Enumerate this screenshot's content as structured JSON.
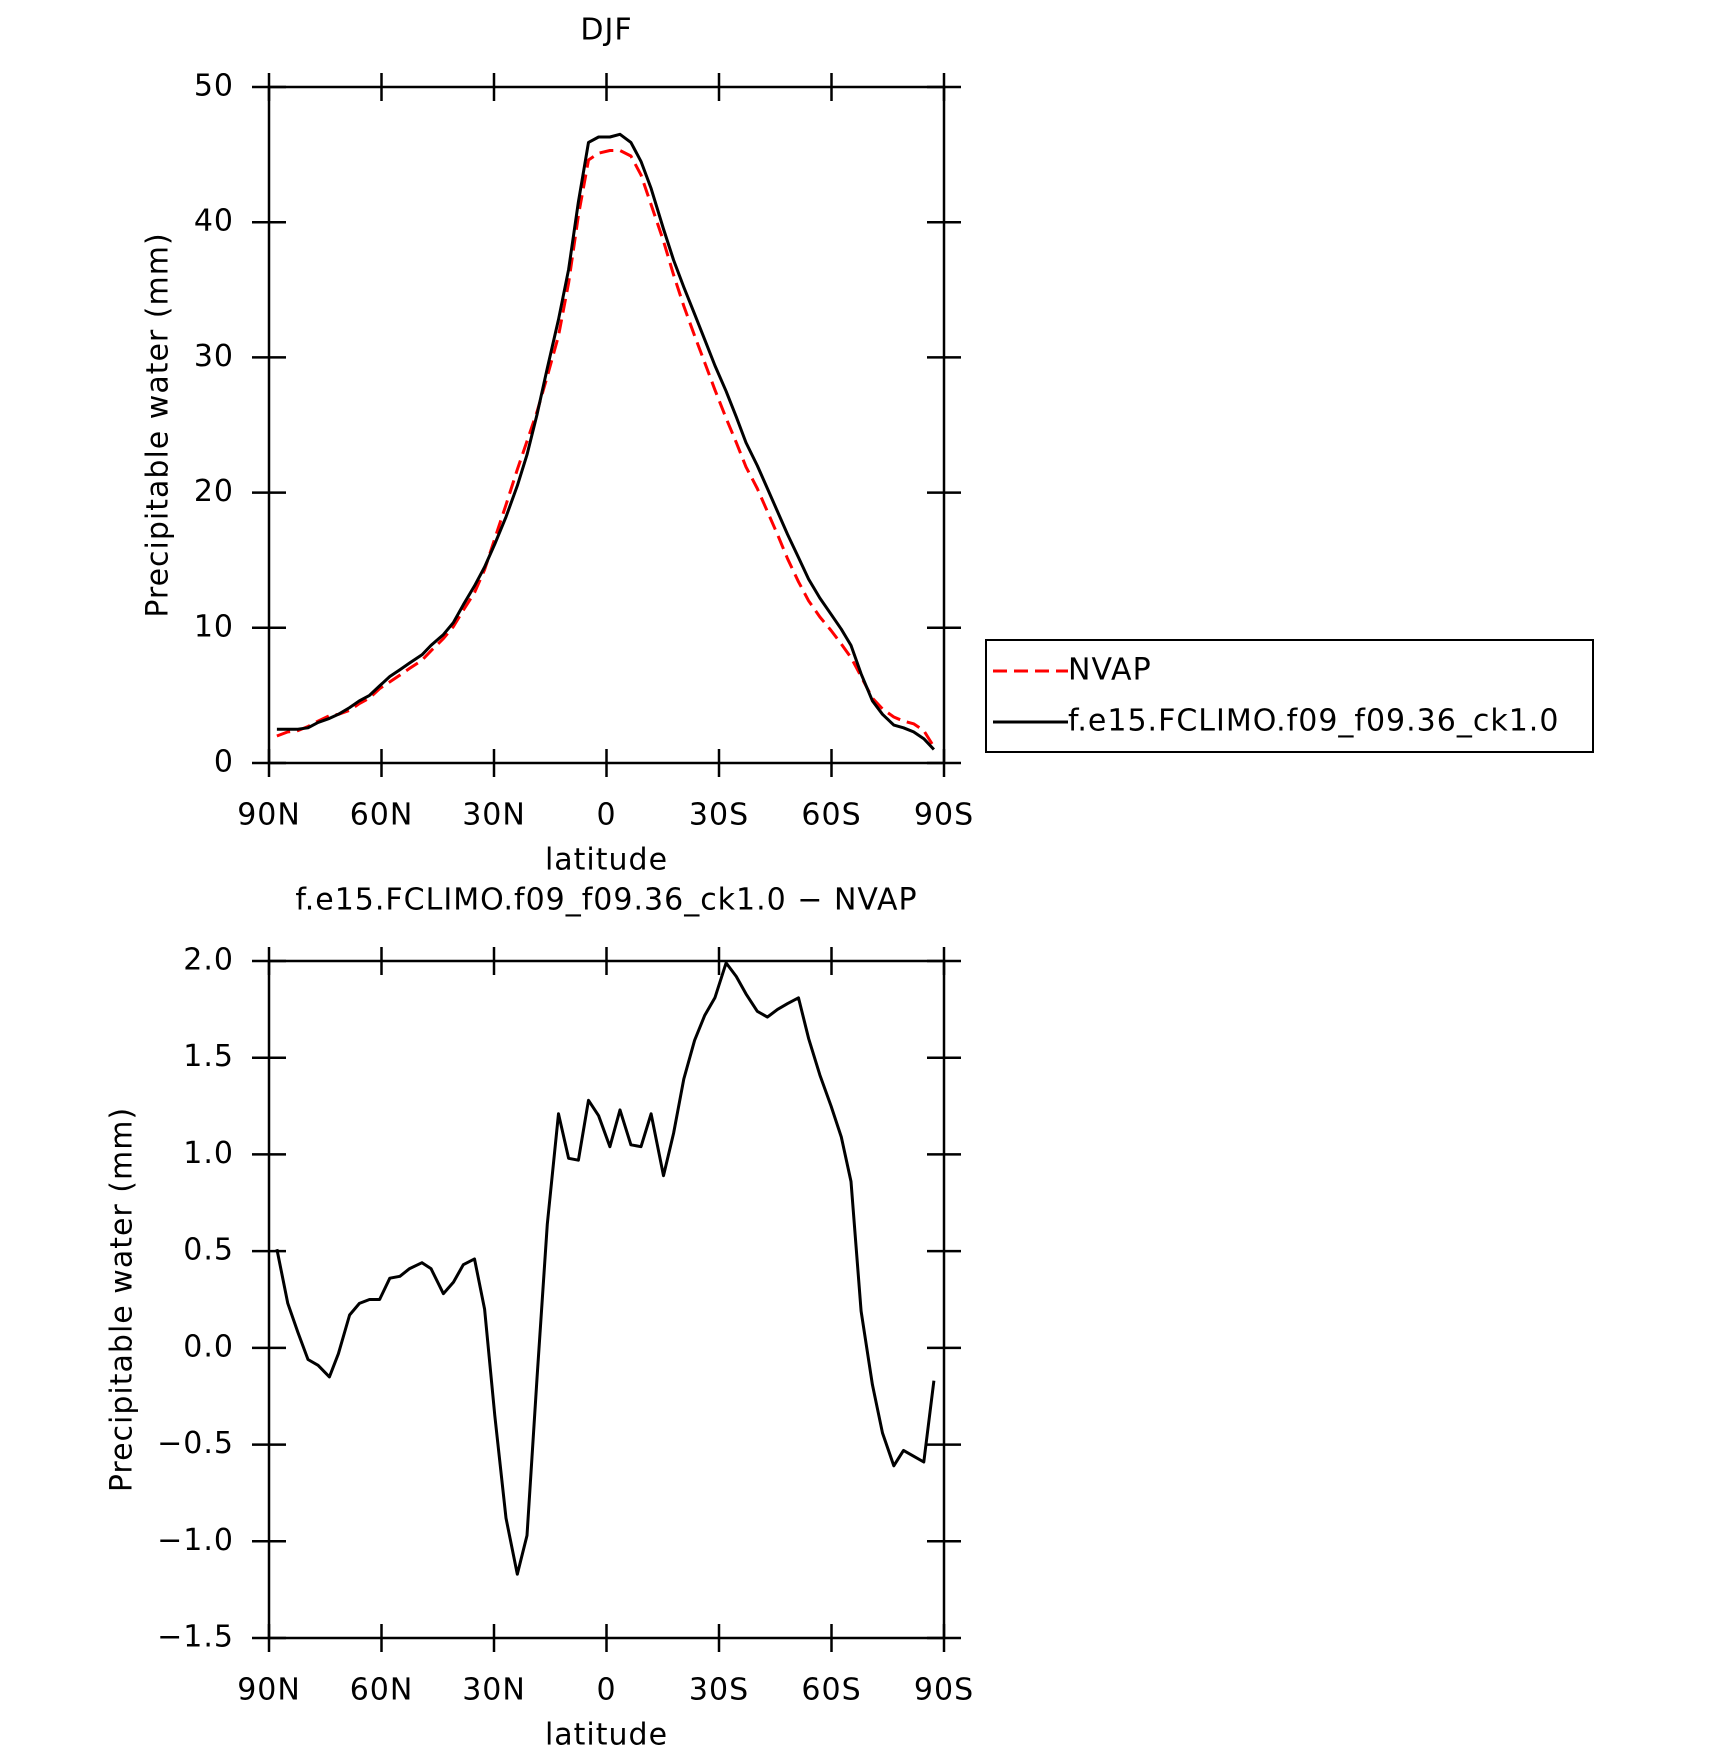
{
  "chart_data": [
    {
      "type": "line",
      "title": "DJF",
      "xlabel": "latitude",
      "ylabel": "Precipitable water (mm)",
      "x": [
        87.9,
        85,
        82.3,
        79.6,
        76.9,
        73.9,
        71.5,
        68.5,
        65.9,
        63.2,
        60.5,
        57.8,
        55.1,
        52.5,
        49.2,
        46.8,
        43.5,
        40.8,
        38.2,
        35.2,
        32.5,
        29.8,
        26.8,
        23.8,
        21.2,
        18.5,
        15.8,
        12.8,
        10.1,
        7.5,
        4.8,
        2.1,
        -0.9,
        -3.6,
        -6.5,
        -9.2,
        -11.9,
        -15.2,
        -17.9,
        -20.6,
        -23.5,
        -26.2,
        -28.9,
        -31.9,
        -34.6,
        -37.2,
        -40.2,
        -42.9,
        -45.6,
        -48.3,
        -51.2,
        -53.9,
        -56.9,
        -59.9,
        -62.6,
        -65.2,
        -67.9,
        -70.9,
        -73.6,
        -76.6,
        -79.2,
        -81.9,
        -84.6,
        -87.3
      ],
      "series": [
        {
          "name": "NVAP",
          "color": "#ff0000",
          "line_style": "dashed",
          "values": [
            2.0,
            2.3,
            2.4,
            2.7,
            3.1,
            3.5,
            3.6,
            3.9,
            4.4,
            4.8,
            5.5,
            6.0,
            6.5,
            7.0,
            7.6,
            8.3,
            9.2,
            10.1,
            11.3,
            12.6,
            14.3,
            16.6,
            19.1,
            21.7,
            23.8,
            26.0,
            28.6,
            31.6,
            35.5,
            40.5,
            44.6,
            45.1,
            45.3,
            45.3,
            44.9,
            43.5,
            41.3,
            38.6,
            36.1,
            33.8,
            31.6,
            29.6,
            27.6,
            25.5,
            23.7,
            21.9,
            20.3,
            18.6,
            16.9,
            15.1,
            13.4,
            12.0,
            10.8,
            9.8,
            8.8,
            7.8,
            6.4,
            4.8,
            4.0,
            3.4,
            3.1,
            2.9,
            2.4,
            1.2
          ]
        },
        {
          "name": "f.e15.FCLIMO.f09_f09.36_ck1.0",
          "color": "#000000",
          "line_style": "solid",
          "values": [
            2.5,
            2.5,
            2.5,
            2.6,
            3.0,
            3.3,
            3.6,
            4.1,
            4.6,
            5.0,
            5.7,
            6.4,
            6.9,
            7.4,
            8.0,
            8.7,
            9.5,
            10.4,
            11.7,
            13.1,
            14.5,
            16.2,
            18.2,
            20.5,
            22.8,
            25.8,
            29.2,
            32.8,
            36.5,
            41.5,
            45.9,
            46.3,
            46.3,
            46.5,
            45.9,
            44.5,
            42.5,
            39.5,
            37.2,
            35.2,
            33.2,
            31.3,
            29.4,
            27.5,
            25.6,
            23.7,
            22.0,
            20.3,
            18.6,
            16.9,
            15.2,
            13.6,
            12.2,
            11.0,
            9.9,
            8.7,
            6.6,
            4.6,
            3.6,
            2.8,
            2.6,
            2.3,
            1.8,
            1.0
          ]
        }
      ],
      "xlim": [
        90,
        -90
      ],
      "xticks": [
        {
          "value": 90,
          "label": "90N"
        },
        {
          "value": 60,
          "label": "60N"
        },
        {
          "value": 30,
          "label": "30N"
        },
        0,
        {
          "value": -30,
          "label": "30S"
        },
        {
          "value": -60,
          "label": "60S"
        },
        {
          "value": -90,
          "label": "90S"
        }
      ],
      "ylim": [
        0,
        50
      ],
      "yticks": [
        0,
        10,
        20,
        30,
        40,
        50
      ],
      "legend": "right"
    },
    {
      "type": "line",
      "title": "f.e15.FCLIMO.f09_f09.36_ck1.0 − NVAP",
      "xlabel": "latitude",
      "ylabel": "Precipitable water (mm)",
      "x": [
        87.9,
        85,
        82.3,
        79.6,
        76.9,
        73.9,
        71.5,
        68.5,
        65.9,
        63.2,
        60.5,
        57.8,
        55.1,
        52.5,
        49.2,
        46.8,
        43.5,
        40.8,
        38.2,
        35.2,
        32.5,
        29.8,
        26.8,
        23.8,
        21.2,
        18.5,
        15.8,
        12.8,
        10.1,
        7.5,
        4.8,
        2.1,
        -0.9,
        -3.6,
        -6.5,
        -9.2,
        -11.9,
        -15.2,
        -17.9,
        -20.6,
        -23.5,
        -26.2,
        -28.9,
        -31.9,
        -34.6,
        -37.2,
        -40.2,
        -42.9,
        -45.6,
        -48.3,
        -51.2,
        -53.9,
        -56.9,
        -59.9,
        -62.6,
        -65.2,
        -67.9,
        -70.9,
        -73.6,
        -76.6,
        -79.2,
        -81.9,
        -84.6,
        -87.3
      ],
      "series": [
        {
          "color": "#000000",
          "line_style": "solid",
          "values": [
            0.51,
            0.23,
            0.08,
            -0.06,
            -0.09,
            -0.15,
            -0.03,
            0.17,
            0.23,
            0.25,
            0.25,
            0.36,
            0.37,
            0.41,
            0.44,
            0.41,
            0.28,
            0.34,
            0.43,
            0.46,
            0.2,
            -0.35,
            -0.88,
            -1.17,
            -0.97,
            -0.15,
            0.64,
            1.21,
            0.98,
            0.97,
            1.28,
            1.2,
            1.04,
            1.23,
            1.05,
            1.04,
            1.21,
            0.89,
            1.11,
            1.39,
            1.59,
            1.72,
            1.81,
            1.99,
            1.92,
            1.83,
            1.74,
            1.71,
            1.75,
            1.78,
            1.81,
            1.6,
            1.41,
            1.25,
            1.09,
            0.86,
            0.19,
            -0.19,
            -0.44,
            -0.61,
            -0.53,
            -0.56,
            -0.59,
            -0.17
          ]
        }
      ],
      "xlim": [
        90,
        -90
      ],
      "xticks": [
        {
          "value": 90,
          "label": "90N"
        },
        {
          "value": 60,
          "label": "60N"
        },
        {
          "value": 30,
          "label": "30N"
        },
        0,
        {
          "value": -30,
          "label": "30S"
        },
        {
          "value": -60,
          "label": "60S"
        },
        {
          "value": -90,
          "label": "90S"
        }
      ],
      "ylim": [
        -1.5,
        2
      ],
      "yticks": [
        {
          "value": -1.5,
          "label": "−1.5"
        },
        {
          "value": -1,
          "label": "−1.0"
        },
        {
          "value": -0.5,
          "label": "−0.5"
        },
        {
          "value": 0,
          "label": "0.0"
        },
        {
          "value": 0.5,
          "label": "0.5"
        },
        {
          "value": 1,
          "label": "1.0"
        },
        {
          "value": 1.5,
          "label": "1.5"
        },
        {
          "value": 2,
          "label": "2.0"
        }
      ]
    }
  ]
}
